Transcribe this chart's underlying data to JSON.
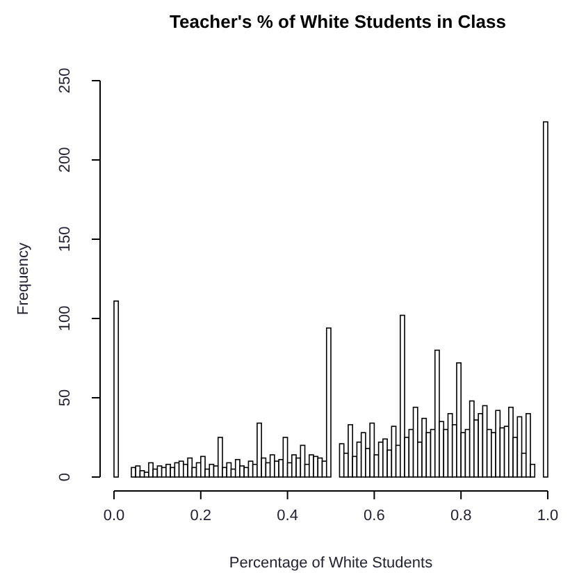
{
  "chart_data": {
    "type": "histogram",
    "title": "Teacher's % of White Students in Class",
    "xlabel": "Percentage of White Students",
    "ylabel": "Frequency",
    "bins": [
      0,
      0.01,
      0.02,
      0.03,
      0.04,
      0.05,
      0.06,
      0.07,
      0.08,
      0.09,
      0.1,
      0.11,
      0.12,
      0.13,
      0.14,
      0.15,
      0.16,
      0.17,
      0.18,
      0.19,
      0.2,
      0.21,
      0.22,
      0.23,
      0.24,
      0.25,
      0.26,
      0.27,
      0.28,
      0.29,
      0.3,
      0.31,
      0.32,
      0.33,
      0.34,
      0.35,
      0.36,
      0.37,
      0.38,
      0.39,
      0.4,
      0.41,
      0.42,
      0.43,
      0.44,
      0.45,
      0.46,
      0.47,
      0.48,
      0.49,
      0.5,
      0.51,
      0.52,
      0.53,
      0.54,
      0.55,
      0.56,
      0.57,
      0.58,
      0.59,
      0.6,
      0.61,
      0.62,
      0.63,
      0.64,
      0.65,
      0.66,
      0.67,
      0.68,
      0.69,
      0.7,
      0.71,
      0.72,
      0.73,
      0.74,
      0.75,
      0.76,
      0.77,
      0.78,
      0.79,
      0.8,
      0.81,
      0.82,
      0.83,
      0.84,
      0.85,
      0.86,
      0.87,
      0.88,
      0.89,
      0.9,
      0.91,
      0.92,
      0.93,
      0.94,
      0.95,
      0.96,
      0.97,
      0.98,
      0.99,
      1
    ],
    "values": [
      111,
      0,
      0,
      0,
      6,
      7,
      4,
      3,
      9,
      5,
      7,
      6,
      8,
      6,
      9,
      10,
      8,
      12,
      6,
      9,
      13,
      5,
      8,
      7,
      25,
      6,
      9,
      5,
      11,
      7,
      6,
      10,
      8,
      34,
      12,
      9,
      14,
      10,
      11,
      25,
      9,
      14,
      12,
      20,
      8,
      14,
      13,
      12,
      10,
      94,
      0,
      0,
      21,
      15,
      33,
      13,
      22,
      28,
      18,
      34,
      14,
      22,
      24,
      17,
      32,
      20,
      102,
      25,
      30,
      44,
      22,
      37,
      28,
      30,
      80,
      35,
      30,
      40,
      33,
      72,
      28,
      30,
      48,
      36,
      40,
      45,
      30,
      28,
      42,
      31,
      32,
      44,
      25,
      38,
      15,
      40,
      8,
      0,
      0,
      224
    ],
    "color": "#ffffff",
    "xlim": [
      0,
      1
    ],
    "xticks": [
      {
        "value": 0,
        "label": "0.0"
      },
      {
        "value": 0.2,
        "label": "0.2"
      },
      {
        "value": 0.4,
        "label": "0.4"
      },
      {
        "value": 0.6,
        "label": "0.6"
      },
      {
        "value": 0.8,
        "label": "0.8"
      },
      {
        "value": 1,
        "label": "1.0"
      }
    ],
    "ylim": [
      0,
      250
    ],
    "yticks": [
      0,
      50,
      100,
      150,
      200,
      250
    ]
  }
}
